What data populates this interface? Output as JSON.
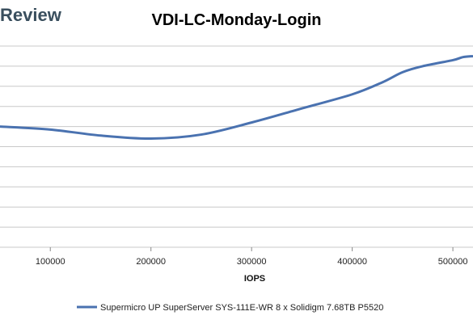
{
  "brand": {
    "text": "Review"
  },
  "chart_data": {
    "type": "line",
    "title": "VDI-LC-Monday-Login",
    "xlabel": "IOPS",
    "ylabel": "",
    "xlim": [
      50000,
      520000
    ],
    "ylim": [
      0,
      10
    ],
    "x_ticks": [
      100000,
      200000,
      300000,
      400000,
      500000
    ],
    "y_gridlines": 10,
    "grid": true,
    "legend_position": "bottom",
    "color": "#4a72b0",
    "series": [
      {
        "name": "Supermicro UP SuperServer SYS-111E-WR 8 x Solidigm 7.68TB P5520",
        "x": [
          50000,
          100000,
          150000,
          200000,
          250000,
          300000,
          350000,
          400000,
          430000,
          450000,
          470000,
          500000,
          510000,
          520000
        ],
        "y": [
          6.0,
          5.85,
          5.55,
          5.4,
          5.6,
          6.2,
          6.9,
          7.6,
          8.2,
          8.7,
          9.0,
          9.3,
          9.45,
          9.5
        ]
      }
    ]
  }
}
